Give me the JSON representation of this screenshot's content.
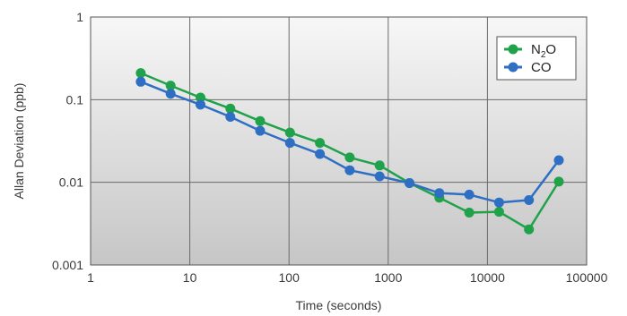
{
  "chart_data": {
    "type": "line",
    "title": "",
    "xlabel": "Time (seconds)",
    "ylabel": "Allan Deviation (ppb)",
    "xscale": "log",
    "yscale": "log",
    "xlim": [
      1,
      100000
    ],
    "ylim": [
      0.001,
      1
    ],
    "x_tick_labels": [
      "1",
      "10",
      "100",
      "1000",
      "10000",
      "100000"
    ],
    "y_tick_labels": [
      "0.001",
      "0.01",
      "0.1",
      "1"
    ],
    "grid": true,
    "legend_position": "top-right",
    "series": [
      {
        "name_base": "N",
        "name_sub": "2",
        "name_tail": "O",
        "color": "#1fa24a",
        "x": [
          3.2,
          6.4,
          12.8,
          25.6,
          51.2,
          102.4,
          204.8,
          409.6,
          819.2,
          1638.4,
          3276.8,
          6553.6,
          13107.2,
          26214.4,
          52428.8
        ],
        "y": [
          0.21,
          0.148,
          0.106,
          0.078,
          0.055,
          0.04,
          0.03,
          0.02,
          0.016,
          0.0098,
          0.0065,
          0.0043,
          0.0044,
          0.0027,
          0.0102
        ]
      },
      {
        "name": "CO",
        "color": "#2e6fc4",
        "x": [
          3.2,
          6.4,
          12.8,
          25.6,
          51.2,
          102.4,
          204.8,
          409.6,
          819.2,
          1638.4,
          3276.8,
          6553.6,
          13107.2,
          26214.4,
          52428.8
        ],
        "y": [
          0.165,
          0.118,
          0.087,
          0.062,
          0.042,
          0.03,
          0.022,
          0.014,
          0.0118,
          0.0098,
          0.0074,
          0.0071,
          0.0057,
          0.0061,
          0.0185
        ]
      }
    ]
  }
}
